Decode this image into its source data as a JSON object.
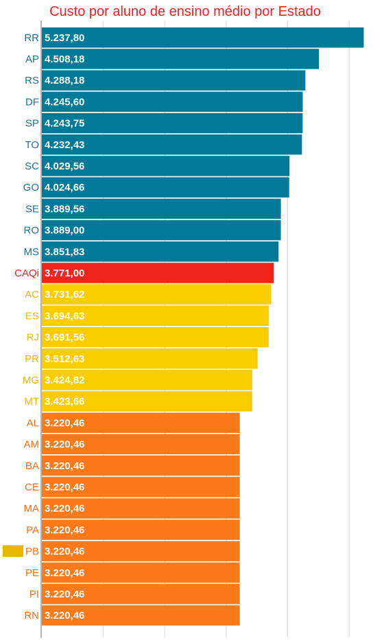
{
  "chart_data": {
    "type": "bar",
    "orientation": "horizontal",
    "title": "Custo por aluno de ensino médio por Estado",
    "xlabel": "",
    "ylabel": "",
    "xlim": [
      0,
      5400
    ],
    "grid": true,
    "categories": [
      "RR",
      "AP",
      "RS",
      "DF",
      "SP",
      "TO",
      "SC",
      "GO",
      "SE",
      "RO",
      "MS",
      "CAQi",
      "AC",
      "ES",
      "RJ",
      "PR",
      "MG",
      "MT",
      "AL",
      "AM",
      "BA",
      "CE",
      "MA",
      "PA",
      "PB",
      "PE",
      "PI",
      "RN"
    ],
    "values": [
      5237.8,
      4508.18,
      4288.18,
      4245.6,
      4243.75,
      4232.43,
      4029.56,
      4024.66,
      3889.56,
      3889.0,
      3851.83,
      3771.0,
      3731.62,
      3694.63,
      3691.56,
      3512.63,
      3424.82,
      3423.66,
      3220.46,
      3220.46,
      3220.46,
      3220.46,
      3220.46,
      3220.46,
      3220.46,
      3220.46,
      3220.46,
      3220.46
    ],
    "value_labels": [
      "5.237,80",
      "4.508,18",
      "4.288,18",
      "4.245,60",
      "4.243,75",
      "4.232,43",
      "4.029,56",
      "4.024,66",
      "3.889,56",
      "3.889,00",
      "3.851,83",
      "3.771,00",
      "3.731,62",
      "3.694,63",
      "3.691,56",
      "3.512,63",
      "3.424,82",
      "3.423,66",
      "3.220,46",
      "3.220,46",
      "3.220,46",
      "3.220,46",
      "3.220,46",
      "3.220,46",
      "3.220,46",
      "3.220,46",
      "3.220,46",
      "3.220,46"
    ],
    "groups": [
      "blue",
      "blue",
      "blue",
      "blue",
      "blue",
      "blue",
      "blue",
      "blue",
      "blue",
      "blue",
      "blue",
      "red",
      "yellow",
      "yellow",
      "yellow",
      "yellow",
      "yellow",
      "yellow",
      "orange",
      "orange",
      "orange",
      "orange",
      "orange",
      "orange",
      "orange",
      "orange",
      "orange",
      "orange"
    ],
    "highlighted_category": "PB"
  },
  "colors": {
    "blue": "#007a96",
    "red": "#f2231a",
    "yellow": "#fbcc00",
    "orange": "#fa7a1a",
    "title": "#e8231d",
    "label_blue": "#1f6f8b",
    "label_red": "#e8231d",
    "label_yellow": "#f0b400",
    "label_orange": "#f26d14",
    "marker": "#e6b800",
    "grid": "#d6d6d6",
    "axis": "#9a9a9a"
  }
}
